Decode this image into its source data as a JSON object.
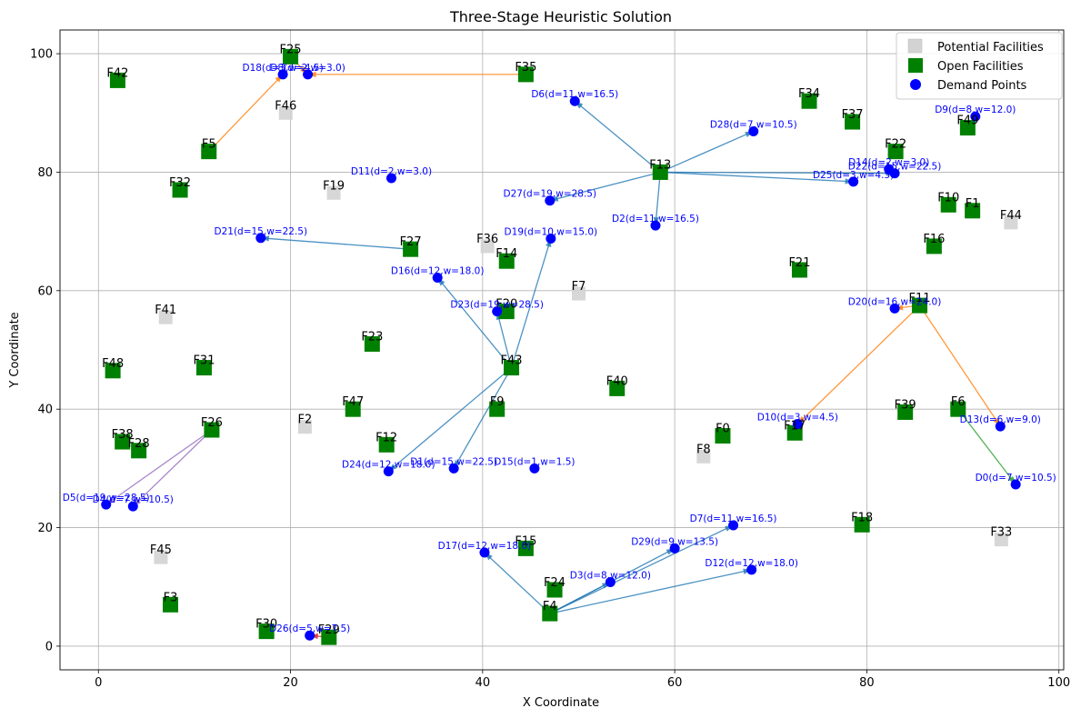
{
  "chart_data": {
    "type": "scatter",
    "title": "Three-Stage Heuristic Solution",
    "xlabel": "X Coordinate",
    "ylabel": "Y Coordinate",
    "xlim": [
      -4,
      100.5
    ],
    "ylim": [
      -4,
      104
    ],
    "xticks": [
      0,
      20,
      40,
      60,
      80,
      100
    ],
    "yticks": [
      0,
      20,
      40,
      60,
      80,
      100
    ],
    "grid": true,
    "legend_position": "top-right",
    "legend": [
      {
        "label": "Potential Facilities",
        "marker": "square",
        "color": "#d3d3d3"
      },
      {
        "label": "Open Facilities",
        "marker": "square",
        "color": "#008000"
      },
      {
        "label": "Demand Points",
        "marker": "circle",
        "color": "#0000ff"
      }
    ],
    "potential_facilities": [
      {
        "name": "F0",
        "x": 65.0,
        "y": 35.5
      },
      {
        "name": "F1",
        "x": 91.0,
        "y": 73.5
      },
      {
        "name": "F2",
        "x": 21.5,
        "y": 37.0
      },
      {
        "name": "F3",
        "x": 7.5,
        "y": 7.0
      },
      {
        "name": "F4",
        "x": 47.0,
        "y": 5.5
      },
      {
        "name": "F5",
        "x": 11.5,
        "y": 83.5
      },
      {
        "name": "F6",
        "x": 89.5,
        "y": 40.0
      },
      {
        "name": "F7",
        "x": 50.0,
        "y": 59.5
      },
      {
        "name": "F8",
        "x": 63.0,
        "y": 32.0
      },
      {
        "name": "F9",
        "x": 41.5,
        "y": 40.0
      },
      {
        "name": "F10",
        "x": 88.5,
        "y": 74.5
      },
      {
        "name": "F11",
        "x": 85.5,
        "y": 57.5
      },
      {
        "name": "F12",
        "x": 30.0,
        "y": 34.0
      },
      {
        "name": "F13",
        "x": 58.5,
        "y": 80.0
      },
      {
        "name": "F14",
        "x": 42.5,
        "y": 65.0
      },
      {
        "name": "F15",
        "x": 44.5,
        "y": 16.5
      },
      {
        "name": "F16",
        "x": 87.0,
        "y": 67.5
      },
      {
        "name": "F17",
        "x": 72.5,
        "y": 36.0
      },
      {
        "name": "F18",
        "x": 79.5,
        "y": 20.5
      },
      {
        "name": "F19",
        "x": 24.5,
        "y": 76.5
      },
      {
        "name": "F20",
        "x": 42.5,
        "y": 56.5
      },
      {
        "name": "F21",
        "x": 73.0,
        "y": 63.5
      },
      {
        "name": "F22",
        "x": 83.0,
        "y": 83.5
      },
      {
        "name": "F23",
        "x": 28.5,
        "y": 51.0
      },
      {
        "name": "F24",
        "x": 47.5,
        "y": 9.5
      },
      {
        "name": "F25",
        "x": 20.0,
        "y": 99.5
      },
      {
        "name": "F26",
        "x": 11.8,
        "y": 36.5
      },
      {
        "name": "F27",
        "x": 32.5,
        "y": 67.0
      },
      {
        "name": "F28",
        "x": 4.2,
        "y": 33.0
      },
      {
        "name": "F29",
        "x": 24.0,
        "y": 1.5
      },
      {
        "name": "F30",
        "x": 17.5,
        "y": 2.5
      },
      {
        "name": "F31",
        "x": 11.0,
        "y": 47.0
      },
      {
        "name": "F32",
        "x": 8.5,
        "y": 77.0
      },
      {
        "name": "F33",
        "x": 94.0,
        "y": 18.0
      },
      {
        "name": "F34",
        "x": 74.0,
        "y": 92.0
      },
      {
        "name": "F35",
        "x": 44.5,
        "y": 96.5
      },
      {
        "name": "F36",
        "x": 40.5,
        "y": 67.5
      },
      {
        "name": "F37",
        "x": 78.5,
        "y": 88.5
      },
      {
        "name": "F38",
        "x": 2.5,
        "y": 34.5
      },
      {
        "name": "F39",
        "x": 84.0,
        "y": 39.5
      },
      {
        "name": "F40",
        "x": 54.0,
        "y": 43.5
      },
      {
        "name": "F41",
        "x": 7.0,
        "y": 55.5
      },
      {
        "name": "F42",
        "x": 2.0,
        "y": 95.5
      },
      {
        "name": "F43",
        "x": 43.0,
        "y": 47.0
      },
      {
        "name": "F44",
        "x": 95.0,
        "y": 71.5
      },
      {
        "name": "F45",
        "x": 6.5,
        "y": 15.0
      },
      {
        "name": "F46",
        "x": 19.5,
        "y": 90.0
      },
      {
        "name": "F47",
        "x": 26.5,
        "y": 40.0
      },
      {
        "name": "F48",
        "x": 1.5,
        "y": 46.5
      },
      {
        "name": "F49",
        "x": 90.5,
        "y": 87.5
      }
    ],
    "open_facilities": [
      "F0",
      "F1",
      "F3",
      "F4",
      "F5",
      "F6",
      "F9",
      "F10",
      "F11",
      "F12",
      "F13",
      "F14",
      "F15",
      "F16",
      "F17",
      "F18",
      "F20",
      "F21",
      "F22",
      "F23",
      "F24",
      "F25",
      "F26",
      "F27",
      "F28",
      "F29",
      "F30",
      "F31",
      "F32",
      "F34",
      "F35",
      "F37",
      "F38",
      "F39",
      "F40",
      "F42",
      "F43",
      "F47",
      "F48",
      "F49"
    ],
    "demand_points": [
      {
        "label": "D0(d=7,w=10.5)",
        "x": 95.5,
        "y": 27.3
      },
      {
        "label": "D1(d=15,w=22.5)",
        "x": 37.0,
        "y": 30.0
      },
      {
        "label": "D2(d=11,w=16.5)",
        "x": 58.0,
        "y": 71.0
      },
      {
        "label": "D3(d=8,w=12.0)",
        "x": 53.3,
        "y": 10.8
      },
      {
        "label": "D4(d=7,w=10.5)",
        "x": 3.6,
        "y": 23.6
      },
      {
        "label": "D5(d=19,w=28.5)",
        "x": 0.8,
        "y": 23.9
      },
      {
        "label": "D6(d=11,w=16.5)",
        "x": 49.6,
        "y": 92.0
      },
      {
        "label": "D7(d=11,w=16.5)",
        "x": 66.1,
        "y": 20.4
      },
      {
        "label": "D8(d=2,w=3.0)",
        "x": 21.8,
        "y": 96.5
      },
      {
        "label": "D9(d=8,w=12.0)",
        "x": 91.3,
        "y": 89.4
      },
      {
        "label": "D10(d=3,w=4.5)",
        "x": 72.8,
        "y": 37.5
      },
      {
        "label": "D11(d=2,w=3.0)",
        "x": 30.5,
        "y": 79.0
      },
      {
        "label": "D12(d=12,w=18.0)",
        "x": 68.0,
        "y": 12.9
      },
      {
        "label": "D13(d=6,w=9.0)",
        "x": 93.9,
        "y": 37.1
      },
      {
        "label": "D14(d=2,w=3.0)",
        "x": 82.3,
        "y": 80.5
      },
      {
        "label": "D15(d=1,w=1.5)",
        "x": 45.4,
        "y": 30.0
      },
      {
        "label": "D16(d=12,w=18.0)",
        "x": 35.3,
        "y": 62.2
      },
      {
        "label": "D17(d=12,w=18.0)",
        "x": 40.2,
        "y": 15.8
      },
      {
        "label": "D18(d=3,w=4.5)",
        "x": 19.2,
        "y": 96.5
      },
      {
        "label": "D19(d=10,w=15.0)",
        "x": 47.1,
        "y": 68.8
      },
      {
        "label": "D20(d=16,w=24.0)",
        "x": 82.9,
        "y": 57.0
      },
      {
        "label": "D21(d=15,w=22.5)",
        "x": 16.9,
        "y": 68.9
      },
      {
        "label": "D22(d=15,w=22.5)",
        "x": 82.9,
        "y": 79.8
      },
      {
        "label": "D23(d=19,w=28.5)",
        "x": 41.5,
        "y": 56.5
      },
      {
        "label": "D24(d=12,w=18.0)",
        "x": 30.2,
        "y": 29.5
      },
      {
        "label": "D25(d=3,w=4.5)",
        "x": 78.6,
        "y": 78.4
      },
      {
        "label": "D26(d=5,w=7.5)",
        "x": 22.0,
        "y": 1.8
      },
      {
        "label": "D27(d=19,w=28.5)",
        "x": 47.0,
        "y": 75.2
      },
      {
        "label": "D28(d=7,w=10.5)",
        "x": 68.2,
        "y": 86.9
      },
      {
        "label": "D29(d=9,w=13.5)",
        "x": 60.0,
        "y": 16.5
      }
    ],
    "assignments": [
      {
        "facility": "F25",
        "demand": "D8(d=2,w=3.0)",
        "color": "#ff7f0e"
      },
      {
        "facility": "F35",
        "demand": "D8(d=2,w=3.0)",
        "color": "#ff7f0e"
      },
      {
        "facility": "F5",
        "demand": "D18(d=3,w=4.5)",
        "color": "#ff7f0e"
      },
      {
        "facility": "F13",
        "demand": "D6(d=11,w=16.5)",
        "color": "#1f77b4"
      },
      {
        "facility": "F13",
        "demand": "D28(d=7,w=10.5)",
        "color": "#1f77b4"
      },
      {
        "facility": "F13",
        "demand": "D27(d=19,w=28.5)",
        "color": "#1f77b4"
      },
      {
        "facility": "F13",
        "demand": "D2(d=11,w=16.5)",
        "color": "#1f77b4"
      },
      {
        "facility": "F13",
        "demand": "D22(d=15,w=22.5)",
        "color": "#1f77b4"
      },
      {
        "facility": "F13",
        "demand": "D25(d=3,w=4.5)",
        "color": "#1f77b4"
      },
      {
        "facility": "F27",
        "demand": "D21(d=15,w=22.5)",
        "color": "#1f77b4"
      },
      {
        "facility": "F43",
        "demand": "D16(d=12,w=18.0)",
        "color": "#1f77b4"
      },
      {
        "facility": "F43",
        "demand": "D19(d=10,w=15.0)",
        "color": "#1f77b4"
      },
      {
        "facility": "F43",
        "demand": "D23(d=19,w=28.5)",
        "color": "#1f77b4"
      },
      {
        "facility": "F43",
        "demand": "D24(d=12,w=18.0)",
        "color": "#1f77b4"
      },
      {
        "facility": "F43",
        "demand": "D1(d=15,w=22.5)",
        "color": "#1f77b4"
      },
      {
        "facility": "F4",
        "demand": "D17(d=12,w=18.0)",
        "color": "#1f77b4"
      },
      {
        "facility": "F4",
        "demand": "D3(d=8,w=12.0)",
        "color": "#1f77b4"
      },
      {
        "facility": "F4",
        "demand": "D29(d=9,w=13.5)",
        "color": "#1f77b4"
      },
      {
        "facility": "F4",
        "demand": "D7(d=11,w=16.5)",
        "color": "#1f77b4"
      },
      {
        "facility": "F4",
        "demand": "D12(d=12,w=18.0)",
        "color": "#1f77b4"
      },
      {
        "facility": "F11",
        "demand": "D20(d=16,w=24.0)",
        "color": "#ff7f0e"
      },
      {
        "facility": "F11",
        "demand": "D10(d=3,w=4.5)",
        "color": "#ff7f0e"
      },
      {
        "facility": "F11",
        "demand": "D13(d=6,w=9.0)",
        "color": "#ff7f0e"
      },
      {
        "facility": "F6",
        "demand": "D0(d=7,w=10.5)",
        "color": "#2ca02c"
      },
      {
        "facility": "F26",
        "demand": "D5(d=19,w=28.5)",
        "color": "#9467bd"
      },
      {
        "facility": "F26",
        "demand": "D4(d=7,w=10.5)",
        "color": "#9467bd"
      },
      {
        "facility": "F29",
        "demand": "D26(d=5,w=7.5)",
        "color": "#d62728"
      }
    ]
  }
}
